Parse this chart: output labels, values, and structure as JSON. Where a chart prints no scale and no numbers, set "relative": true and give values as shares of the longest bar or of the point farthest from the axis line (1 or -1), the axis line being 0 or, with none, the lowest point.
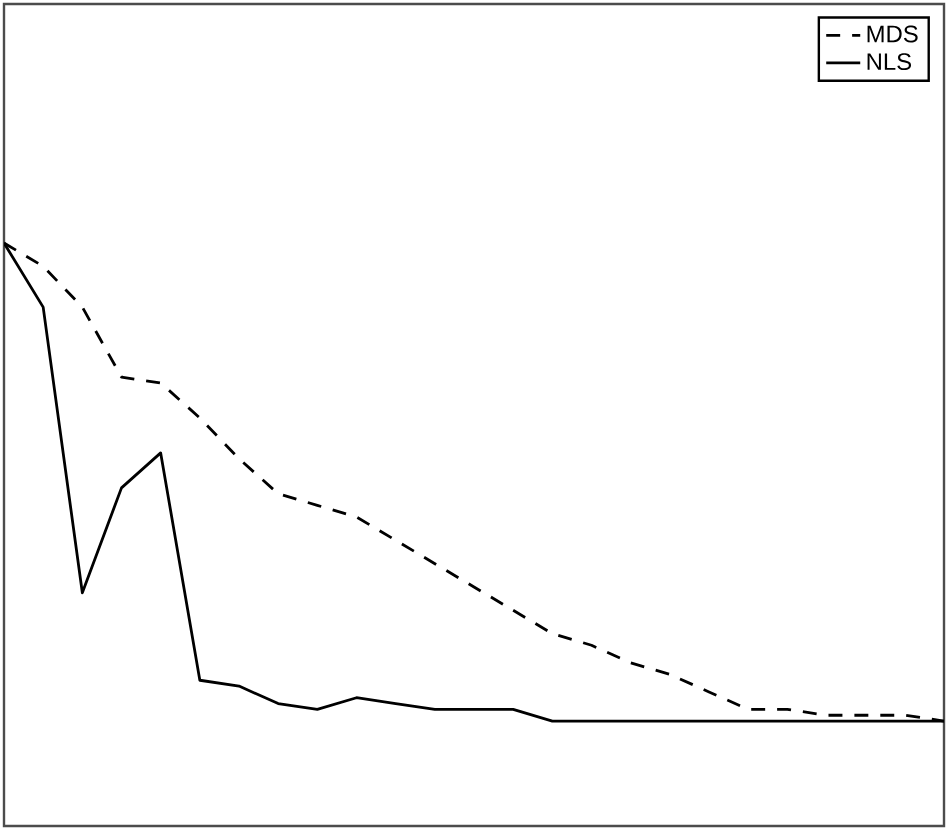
{
  "chart_data": {
    "type": "line",
    "relative": true,
    "legend": "top right",
    "categories": [
      null,
      null,
      null,
      null,
      null,
      null,
      null,
      null,
      null,
      null,
      null,
      null,
      null,
      null,
      null,
      null,
      null,
      null,
      null,
      null,
      null,
      null,
      null,
      null,
      null
    ],
    "series": [
      {
        "name": "MDS",
        "color": "#000000",
        "line_style": "dashed",
        "values": [
          1.0,
          0.96,
          0.89,
          0.77,
          0.76,
          0.7,
          0.63,
          0.57,
          0.55,
          0.53,
          0.49,
          0.45,
          0.41,
          0.37,
          0.33,
          0.31,
          0.28,
          0.26,
          0.23,
          0.2,
          0.2,
          0.19,
          0.19,
          0.19,
          0.18
        ]
      },
      {
        "name": "NLS",
        "color": "#000000",
        "line_style": "solid",
        "values": [
          1.0,
          0.89,
          0.4,
          0.58,
          0.64,
          0.25,
          0.24,
          0.21,
          0.2,
          0.22,
          0.21,
          0.2,
          0.2,
          0.2,
          0.18,
          0.18,
          0.18,
          0.18,
          0.18,
          0.18,
          0.18,
          0.18,
          0.18,
          0.18,
          0.18
        ]
      }
    ]
  }
}
